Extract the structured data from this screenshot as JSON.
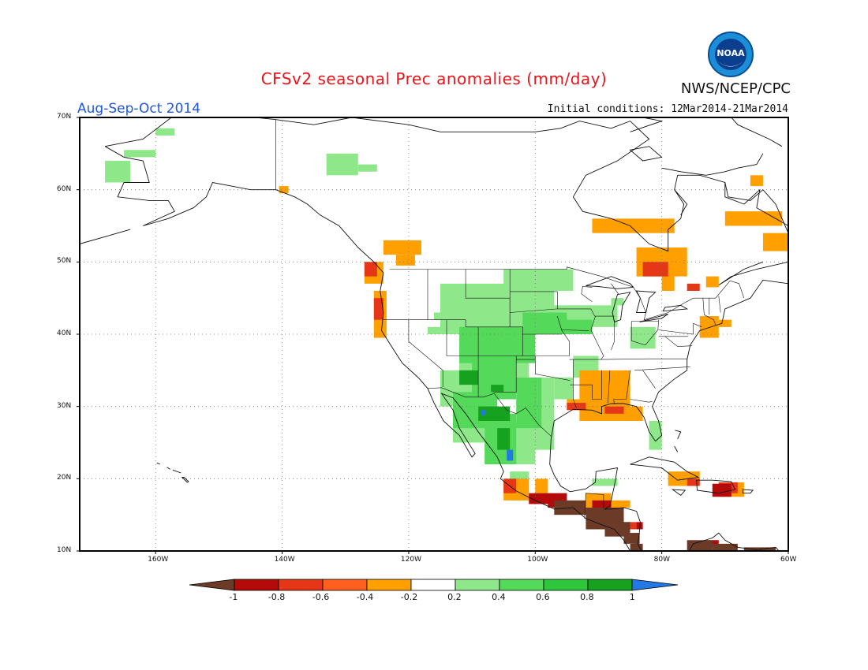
{
  "header": {
    "title": "CFSv2 seasonal Prec anomalies (mm/day)",
    "period": "Aug-Sep-Oct 2014",
    "initial_conditions": "Initial conditions: 12Mar2014-21Mar2014",
    "agency": "NWS/NCEP/CPC",
    "logo_text": "NOAA"
  },
  "map": {
    "lat_labels": [
      "70N",
      "60N",
      "50N",
      "40N",
      "30N",
      "20N",
      "10N"
    ],
    "lon_labels": [
      "160W",
      "140W",
      "120W",
      "100W",
      "80W",
      "60W"
    ],
    "extent": {
      "lon_min": -172,
      "lon_max": -60,
      "lat_min": 10,
      "lat_max": 70
    }
  },
  "colorbar": {
    "labels": [
      "-1",
      "-0.8",
      "-0.6",
      "-0.4",
      "-0.2",
      "0.2",
      "0.4",
      "0.6",
      "0.8",
      "1"
    ],
    "colors": [
      "#6b3b27",
      "#b50a0a",
      "#e53618",
      "#ff5f1f",
      "#ff9f00",
      "#ffffff",
      "#8ee88a",
      "#55d95a",
      "#2ec63b",
      "#16a21f",
      "#2478e3"
    ]
  },
  "palette": {
    "brown": "#6b3b27",
    "dark_red": "#b50a0a",
    "red": "#e53618",
    "orange": "#ff9f00",
    "light_green": "#8ee88a",
    "green": "#55d95a",
    "dark_green": "#16a21f",
    "blue": "#2478e3"
  }
}
